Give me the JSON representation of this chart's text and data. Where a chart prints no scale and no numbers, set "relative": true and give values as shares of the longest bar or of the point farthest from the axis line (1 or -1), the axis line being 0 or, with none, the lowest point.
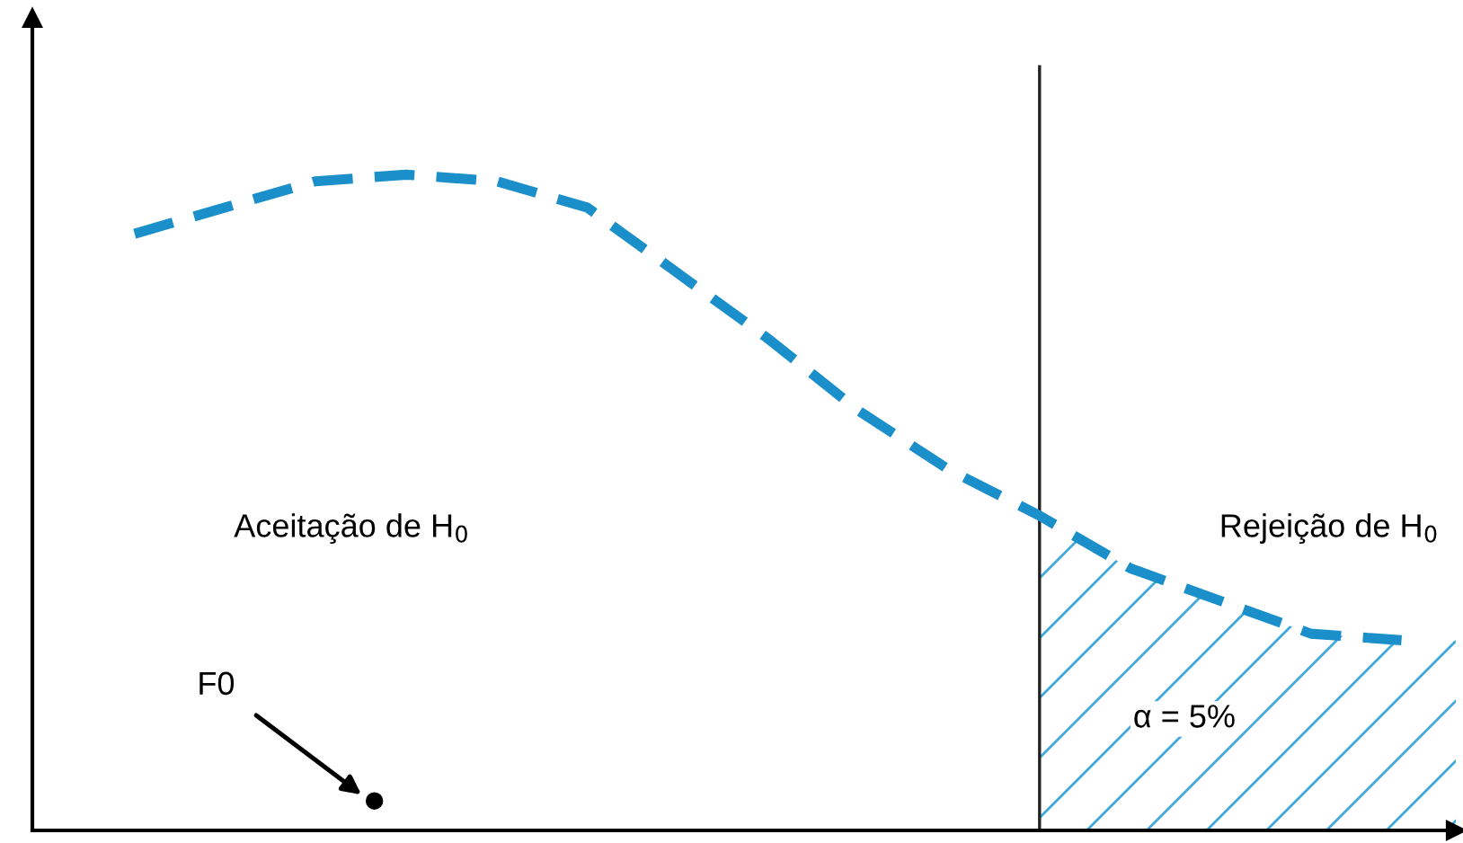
{
  "chart_data": {
    "type": "line",
    "relative": true,
    "categories": [
      null,
      null,
      null,
      null,
      null,
      null,
      null,
      null,
      null,
      null,
      null,
      null,
      null,
      null,
      null
    ],
    "series": [
      {
        "color": "#1a8fc9",
        "values": [
          0.91,
          0.95,
          0.99,
          1.0,
          0.99,
          0.95,
          0.85,
          0.75,
          0.64,
          0.55,
          0.48,
          0.4,
          0.35,
          0.3,
          0.29
        ]
      }
    ],
    "line_style": "dashed",
    "marker": "none",
    "legend": false,
    "annotations": [
      "Aceitação de H$_{0}$",
      "Rejeição de H$_{0}$",
      "α = 5%",
      "F0"
    ]
  }
}
